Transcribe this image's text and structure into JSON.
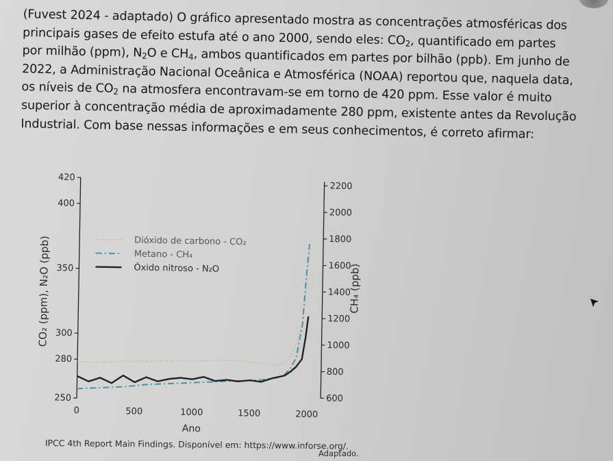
{
  "question": {
    "line1_a": "(Fuvest 2024 - adaptado) O gráfico apresentado mostra as concentrações atmosféricas dos",
    "line2_a": "principais gases de efeito estufa até o ano 2000, sendo eles: CO",
    "line2_sub": "2",
    "line2_b": ", quantificado em partes",
    "line3_a": "por milhão (ppm), N",
    "line3_sub1": "2",
    "line3_b": "O e CH",
    "line3_sub2": "4",
    "line3_c": ", ambos quantificados em partes por bilhão (ppb). Em junho de",
    "line4": "2022, a Administração Nacional Oceânica e Atmosférica (NOAA) reportou que, naquela data,",
    "line5_a": "os níveis de CO",
    "line5_sub": "2",
    "line5_b": " na atmosfera encontravam-se em torno de 420 ppm. Esse valor é muito",
    "line6": "superior à concentração média de aproximadamente 280 ppm, existente antes da Revolução",
    "line7": "Industrial. Com base nessas informações e em seus conhecimentos, é correto afirmar:"
  },
  "source_text": "IPCC 4th Report Main Findings. Disponível em: https://www.inforse.org/.",
  "adaptado_text": "Adaptado.",
  "chart_data": {
    "type": "line",
    "title": "",
    "xlabel": "Ano",
    "ylabel_left": "CO₂ (ppm), N₂O (ppb)",
    "ylabel_right": "CH₄ (ppb)",
    "xlim": [
      0,
      2000
    ],
    "ylim_left": [
      250,
      420
    ],
    "ylim_right": [
      600,
      2200
    ],
    "x_ticks": [
      0,
      500,
      1000,
      1500,
      2000
    ],
    "y_left_ticks": [
      250,
      280,
      300,
      350,
      400,
      420
    ],
    "y_right_ticks": [
      600,
      800,
      1000,
      1200,
      1400,
      1600,
      1800,
      2000,
      2200
    ],
    "grid": false,
    "legend_position": "upper-left",
    "series": [
      {
        "name": "Dióxido de carbono - CO₂",
        "axis": "left",
        "style": "dotted",
        "color": "#d9a6a2",
        "x": [
          0,
          200,
          400,
          600,
          800,
          1000,
          1200,
          1400,
          1600,
          1750,
          1800,
          1850,
          1900,
          1950,
          1980,
          2000
        ],
        "y": [
          278,
          278,
          279,
          279,
          280,
          280,
          281,
          281,
          279,
          278,
          280,
          285,
          296,
          311,
          339,
          369
        ]
      },
      {
        "name": "Metano - CH₄",
        "axis": "right",
        "style": "dash-dot",
        "color": "#4c8fa8",
        "x": [
          0,
          200,
          400,
          600,
          800,
          1000,
          1200,
          1400,
          1600,
          1750,
          1800,
          1850,
          1900,
          1950,
          1980,
          2000
        ],
        "y": [
          640,
          650,
          660,
          680,
          690,
          700,
          710,
          720,
          730,
          750,
          770,
          820,
          900,
          1150,
          1550,
          1760
        ]
      },
      {
        "name": "Óxido nitroso - N₂O",
        "axis": "left",
        "style": "solid",
        "color": "#222222",
        "x": [
          0,
          100,
          200,
          300,
          400,
          500,
          600,
          700,
          800,
          900,
          1000,
          1100,
          1200,
          1300,
          1400,
          1500,
          1600,
          1700,
          1800,
          1850,
          1900,
          1950,
          1980,
          2000
        ],
        "y": [
          267,
          263,
          266,
          262,
          268,
          263,
          267,
          264,
          266,
          267,
          266,
          268,
          265,
          266,
          265,
          266,
          265,
          268,
          270,
          273,
          277,
          283,
          300,
          316
        ]
      }
    ]
  }
}
